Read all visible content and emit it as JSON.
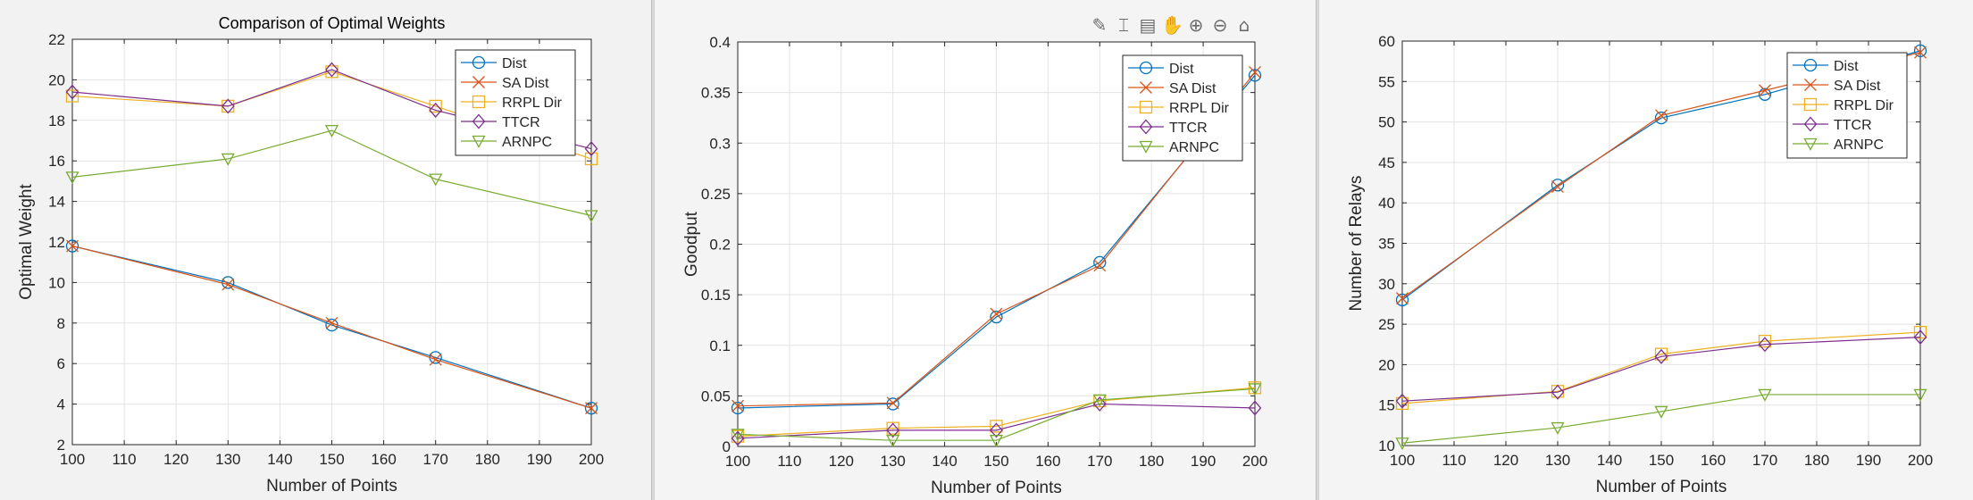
{
  "toolbar": {
    "icons": [
      {
        "name": "data-tip-icon",
        "glyph": "✎"
      },
      {
        "name": "brush-icon",
        "glyph": "⌶"
      },
      {
        "name": "legend-icon",
        "glyph": "▤"
      },
      {
        "name": "pan-icon",
        "glyph": "✋"
      },
      {
        "name": "zoom-in-icon",
        "glyph": "⊕"
      },
      {
        "name": "zoom-out-icon",
        "glyph": "⊖"
      },
      {
        "name": "home-icon",
        "glyph": "⌂"
      }
    ]
  },
  "chart_data": [
    {
      "type": "line",
      "title": "Comparison of Optimal Weights",
      "xlabel": "Number of Points",
      "ylabel": "Optimal Weight",
      "xlim": [
        100,
        200
      ],
      "ylim": [
        2,
        22
      ],
      "xticks": [
        100,
        110,
        120,
        130,
        140,
        150,
        160,
        170,
        180,
        190,
        200
      ],
      "yticks": [
        2,
        4,
        6,
        8,
        10,
        12,
        14,
        16,
        18,
        20,
        22
      ],
      "ytick_labels": [
        "2",
        "4",
        "6",
        "8",
        "10",
        "12",
        "14",
        "16",
        "18",
        "20",
        "22"
      ],
      "grid": true,
      "legend_position": "top-right",
      "x": [
        100,
        130,
        150,
        170,
        200
      ],
      "series": [
        {
          "name": "Dist",
          "color": "#0072bd",
          "marker": "circle",
          "values": [
            11.8,
            10.0,
            7.9,
            6.3,
            3.8
          ]
        },
        {
          "name": "SA Dist",
          "color": "#d95319",
          "marker": "x",
          "values": [
            11.8,
            9.9,
            8.0,
            6.2,
            3.8
          ]
        },
        {
          "name": "RRPL Dir",
          "color": "#edb120",
          "marker": "square",
          "values": [
            19.2,
            18.7,
            20.4,
            18.7,
            16.1
          ]
        },
        {
          "name": "TTCR",
          "color": "#7e2f8e",
          "marker": "diamond",
          "values": [
            19.4,
            18.7,
            20.5,
            18.5,
            16.6
          ]
        },
        {
          "name": "ARNPC",
          "color": "#77ac30",
          "marker": "triangle-down",
          "values": [
            15.2,
            16.1,
            17.5,
            15.1,
            13.3
          ]
        }
      ]
    },
    {
      "type": "line",
      "title": "",
      "xlabel": "Number of Points",
      "ylabel": "Goodput",
      "xlim": [
        100,
        200
      ],
      "ylim": [
        0,
        0.4
      ],
      "xticks": [
        100,
        110,
        120,
        130,
        140,
        150,
        160,
        170,
        180,
        190,
        200
      ],
      "yticks": [
        0,
        0.05,
        0.1,
        0.15,
        0.2,
        0.25,
        0.3,
        0.35,
        0.4
      ],
      "ytick_labels": [
        "0",
        "0.05",
        "0.1",
        "0.15",
        "0.2",
        "0.25",
        "0.3",
        "0.35",
        "0.4"
      ],
      "grid": true,
      "legend_position": "top-right",
      "x": [
        100,
        130,
        150,
        170,
        200
      ],
      "series": [
        {
          "name": "Dist",
          "color": "#0072bd",
          "marker": "circle",
          "values": [
            0.038,
            0.042,
            0.128,
            0.182,
            0.367
          ]
        },
        {
          "name": "SA Dist",
          "color": "#d95319",
          "marker": "x",
          "values": [
            0.04,
            0.043,
            0.131,
            0.179,
            0.37
          ]
        },
        {
          "name": "RRPL Dir",
          "color": "#edb120",
          "marker": "square",
          "values": [
            0.01,
            0.018,
            0.02,
            0.045,
            0.058
          ]
        },
        {
          "name": "TTCR",
          "color": "#7e2f8e",
          "marker": "diamond",
          "values": [
            0.008,
            0.016,
            0.016,
            0.042,
            0.038
          ]
        },
        {
          "name": "ARNPC",
          "color": "#77ac30",
          "marker": "triangle-down",
          "values": [
            0.012,
            0.006,
            0.006,
            0.046,
            0.057
          ]
        }
      ]
    },
    {
      "type": "line",
      "title": "",
      "xlabel": "Number of Points",
      "ylabel": "Number of Relays",
      "xlim": [
        100,
        200
      ],
      "ylim": [
        10,
        60
      ],
      "xticks": [
        100,
        110,
        120,
        130,
        140,
        150,
        160,
        170,
        180,
        190,
        200
      ],
      "yticks": [
        10,
        15,
        20,
        25,
        30,
        35,
        40,
        45,
        50,
        55,
        60
      ],
      "ytick_labels": [
        "10",
        "15",
        "20",
        "25",
        "30",
        "35",
        "40",
        "45",
        "50",
        "55",
        "60"
      ],
      "grid": true,
      "legend_position": "top-right",
      "x": [
        100,
        130,
        150,
        170,
        200
      ],
      "series": [
        {
          "name": "Dist",
          "color": "#0072bd",
          "marker": "circle",
          "values": [
            28.0,
            42.2,
            50.5,
            53.4,
            58.8
          ]
        },
        {
          "name": "SA Dist",
          "color": "#d95319",
          "marker": "x",
          "values": [
            28.2,
            42.0,
            50.8,
            53.9,
            58.6
          ]
        },
        {
          "name": "RRPL Dir",
          "color": "#edb120",
          "marker": "square",
          "values": [
            15.2,
            16.7,
            21.3,
            22.9,
            24.0
          ]
        },
        {
          "name": "TTCR",
          "color": "#7e2f8e",
          "marker": "diamond",
          "values": [
            15.5,
            16.6,
            21.0,
            22.5,
            23.4
          ]
        },
        {
          "name": "ARNPC",
          "color": "#77ac30",
          "marker": "triangle-down",
          "values": [
            10.3,
            12.2,
            14.2,
            16.3,
            16.3
          ]
        }
      ]
    }
  ]
}
